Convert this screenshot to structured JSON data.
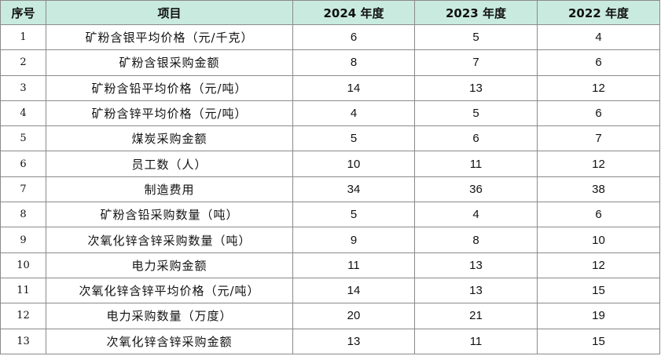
{
  "table": {
    "headers": [
      "序号",
      "项目",
      "2024 年度",
      "2023 年度",
      "2022 年度"
    ],
    "rows": [
      {
        "idx": "1",
        "item": "矿粉含银平均价格（元/千克）",
        "y2024": "6",
        "y2023": "5",
        "y2022": "4"
      },
      {
        "idx": "2",
        "item": "矿粉含银采购金额",
        "y2024": "8",
        "y2023": "7",
        "y2022": "6"
      },
      {
        "idx": "3",
        "item": "矿粉含铅平均价格（元/吨）",
        "y2024": "14",
        "y2023": "13",
        "y2022": "12"
      },
      {
        "idx": "4",
        "item": "矿粉含锌平均价格（元/吨）",
        "y2024": "4",
        "y2023": "5",
        "y2022": "6"
      },
      {
        "idx": "5",
        "item": "煤炭采购金额",
        "y2024": "5",
        "y2023": "6",
        "y2022": "7"
      },
      {
        "idx": "6",
        "item": "员工数（人）",
        "y2024": "10",
        "y2023": "11",
        "y2022": "12"
      },
      {
        "idx": "7",
        "item": "制造费用",
        "y2024": "34",
        "y2023": "36",
        "y2022": "38"
      },
      {
        "idx": "8",
        "item": "矿粉含铅采购数量（吨）",
        "y2024": "5",
        "y2023": "4",
        "y2022": "6"
      },
      {
        "idx": "9",
        "item": "次氧化锌含锌采购数量（吨）",
        "y2024": "9",
        "y2023": "8",
        "y2022": "10"
      },
      {
        "idx": "10",
        "item": "电力采购金额",
        "y2024": "11",
        "y2023": "13",
        "y2022": "12"
      },
      {
        "idx": "11",
        "item": "次氧化锌含锌平均价格（元/吨）",
        "y2024": "14",
        "y2023": "13",
        "y2022": "15"
      },
      {
        "idx": "12",
        "item": "电力采购数量（万度）",
        "y2024": "20",
        "y2023": "21",
        "y2022": "19"
      },
      {
        "idx": "13",
        "item": "次氧化锌含锌采购金额",
        "y2024": "13",
        "y2023": "11",
        "y2022": "15"
      }
    ]
  },
  "colors": {
    "header_bg": "#c9eadf",
    "border": "#8a8a8a",
    "text": "#111111"
  }
}
